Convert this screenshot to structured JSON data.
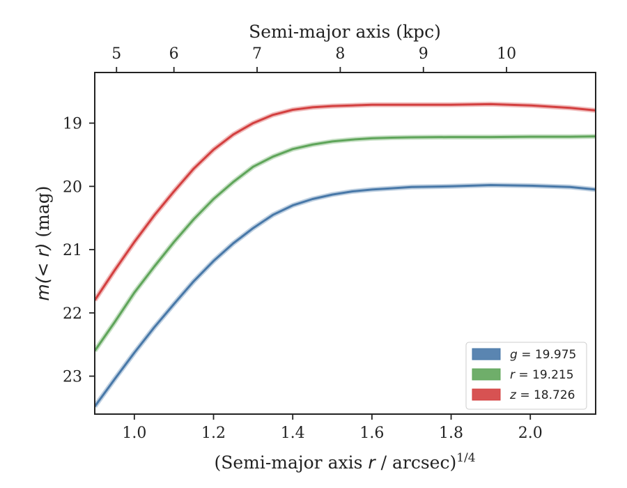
{
  "chart_data": {
    "type": "line",
    "xlabel": "(Semi-major axis r / arcsec)",
    "xlabel_sup": "1/4",
    "ylabel": "m(< r) (mag)",
    "top_xlabel": "Semi-major axis (kpc)",
    "xlim": [
      0.9,
      2.165
    ],
    "ylim": [
      23.6,
      18.2
    ],
    "y_inverted": true,
    "grid": false,
    "legend_position": "lower-right",
    "x_ticks": [
      1.0,
      1.2,
      1.4,
      1.6,
      1.8,
      2.0
    ],
    "x_tick_labels": [
      "1.0",
      "1.2",
      "1.4",
      "1.6",
      "1.8",
      "2.0"
    ],
    "y_ticks": [
      19,
      20,
      21,
      22,
      23
    ],
    "y_tick_labels": [
      "19",
      "20",
      "21",
      "22",
      "23"
    ],
    "top_ticks_kpc": [
      5,
      6,
      7,
      8,
      9,
      10
    ],
    "top_tick_labels": [
      "5",
      "6",
      "7",
      "8",
      "9",
      "10"
    ],
    "top_axis_bottom_coord": [
      0.955,
      1.1,
      1.31,
      1.52,
      1.73,
      1.94
    ],
    "series": [
      {
        "name": "g",
        "legend_label": "g = 19.975",
        "color": "#4878a8",
        "x": [
          0.9,
          0.95,
          1.0,
          1.05,
          1.1,
          1.15,
          1.2,
          1.25,
          1.3,
          1.35,
          1.4,
          1.45,
          1.5,
          1.55,
          1.6,
          1.65,
          1.7,
          1.8,
          1.9,
          2.0,
          2.1,
          2.165
        ],
        "y": [
          23.48,
          23.05,
          22.63,
          22.23,
          21.86,
          21.5,
          21.18,
          20.9,
          20.66,
          20.45,
          20.3,
          20.2,
          20.13,
          20.08,
          20.05,
          20.03,
          20.01,
          20.0,
          19.98,
          19.99,
          20.01,
          20.05
        ]
      },
      {
        "name": "r",
        "legend_label": "r = 19.215",
        "color": "#5fa55a",
        "x": [
          0.9,
          0.95,
          1.0,
          1.05,
          1.1,
          1.15,
          1.2,
          1.25,
          1.3,
          1.35,
          1.4,
          1.45,
          1.5,
          1.55,
          1.6,
          1.65,
          1.7,
          1.8,
          1.9,
          2.0,
          2.1,
          2.165
        ],
        "y": [
          22.6,
          22.15,
          21.68,
          21.27,
          20.88,
          20.52,
          20.2,
          19.93,
          19.69,
          19.53,
          19.41,
          19.34,
          19.29,
          19.26,
          19.24,
          19.23,
          19.225,
          19.22,
          19.22,
          19.215,
          19.215,
          19.21
        ]
      },
      {
        "name": "z",
        "legend_label": "z = 18.726",
        "color": "#d33f3f",
        "x": [
          0.9,
          0.95,
          1.0,
          1.05,
          1.1,
          1.15,
          1.2,
          1.25,
          1.3,
          1.35,
          1.4,
          1.45,
          1.5,
          1.55,
          1.6,
          1.65,
          1.7,
          1.8,
          1.9,
          2.0,
          2.1,
          2.165
        ],
        "y": [
          21.8,
          21.33,
          20.88,
          20.46,
          20.08,
          19.72,
          19.42,
          19.18,
          19.0,
          18.87,
          18.79,
          18.75,
          18.73,
          18.72,
          18.71,
          18.71,
          18.71,
          18.71,
          18.7,
          18.72,
          18.76,
          18.8
        ]
      }
    ]
  }
}
